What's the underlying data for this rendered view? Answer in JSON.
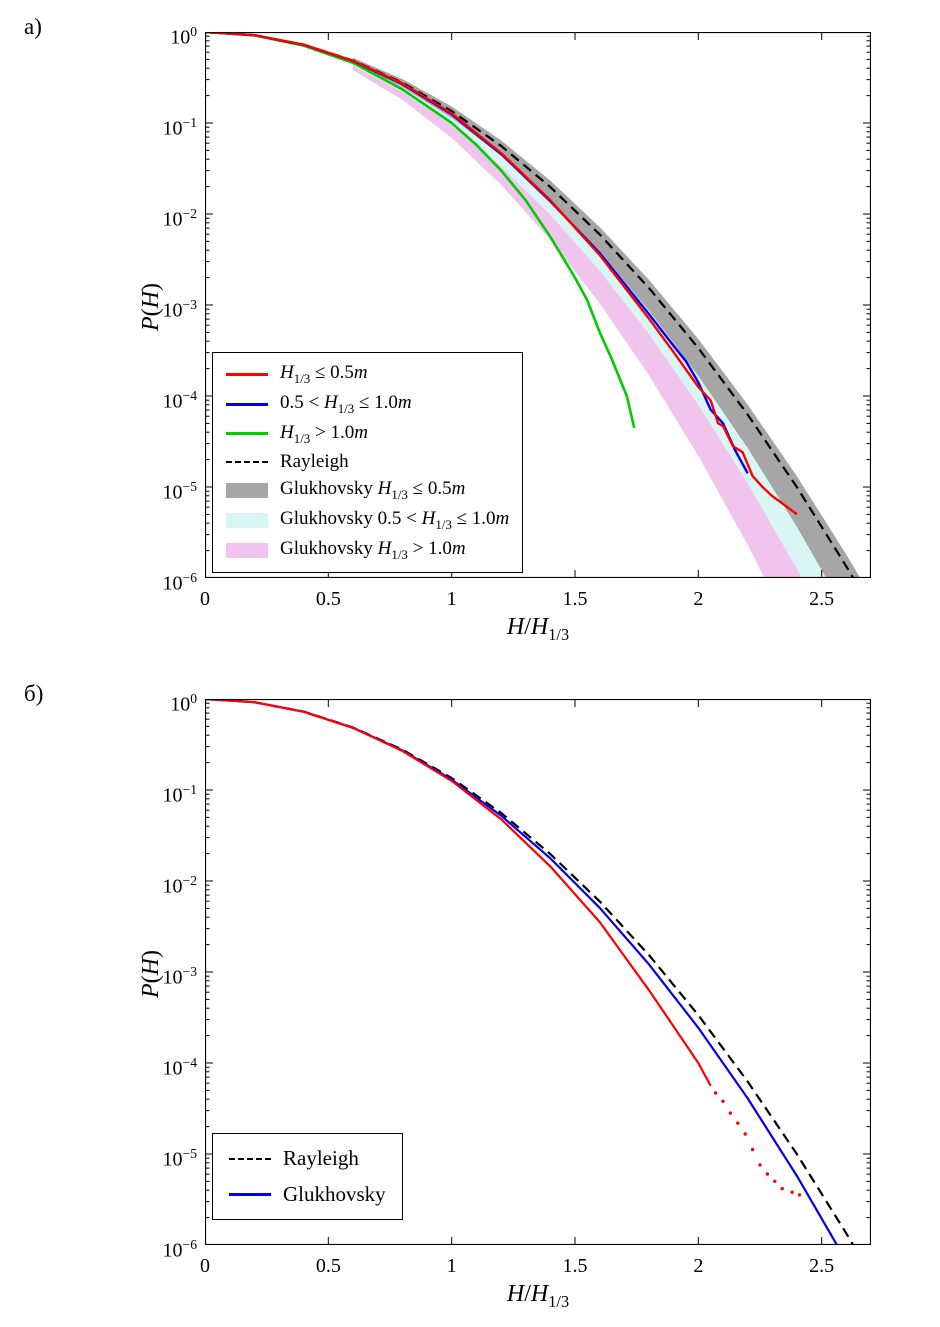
{
  "figure": {
    "description_note": "",
    "accent_colors": {
      "red": "#ff0000",
      "blue": "#0000ee",
      "green": "#00cc00",
      "black": "#000000",
      "gray_band": "#a6a6a6",
      "cyan_band": "#d9f6f4",
      "pink_band": "#f0c4ec"
    }
  },
  "chart_data": [
    {
      "type": "line",
      "panel_label": "а)",
      "title": "",
      "xlabel_segments": [
        [
          "i",
          "H"
        ],
        [
          "n",
          "/"
        ],
        [
          "i",
          "H"
        ],
        [
          "sub",
          "1/3"
        ]
      ],
      "ylabel_segments": [
        [
          "i",
          "P"
        ],
        [
          "n",
          "("
        ],
        [
          "i",
          "H"
        ],
        [
          "n",
          ")"
        ]
      ],
      "xlim": [
        0,
        2.7
      ],
      "ylog_exponent_range": [
        0,
        -6
      ],
      "x_ticks": [
        0,
        0.5,
        1,
        1.5,
        2,
        2.5
      ],
      "x_tick_labels": [
        "0",
        "0.5",
        "1",
        "1.5",
        "2",
        "2.5"
      ],
      "y_tick_exponents": [
        0,
        -1,
        -2,
        -3,
        -4,
        -5,
        -6
      ],
      "grid": false,
      "legend_position": "southwest",
      "bands": [
        {
          "name": "glukhovsky-band-le05",
          "color": "#a6a6a6",
          "x": [
            0.6,
            0.8,
            1.0,
            1.2,
            1.4,
            1.6,
            1.8,
            2.0,
            2.2,
            2.4,
            2.6,
            2.7
          ],
          "upper": [
            -0.283,
            -0.516,
            -0.819,
            -1.191,
            -1.633,
            -2.144,
            -2.724,
            -3.374,
            -4.094,
            -4.883,
            -5.742,
            -6.197
          ],
          "lower": [
            -0.34,
            -0.605,
            -0.945,
            -1.361,
            -1.852,
            -2.419,
            -3.062,
            -3.78,
            -4.574,
            -5.443,
            -6.388,
            -6.889
          ]
        },
        {
          "name": "glukhovsky-band-05to10",
          "color": "#d9f6f4",
          "x": [
            0.6,
            0.8,
            1.0,
            1.2,
            1.4,
            1.6,
            1.8,
            2.0,
            2.2,
            2.4,
            2.6,
            2.7
          ],
          "upper": [
            -0.34,
            -0.605,
            -0.945,
            -1.361,
            -1.852,
            -2.419,
            -3.062,
            -3.78,
            -4.574,
            -5.443,
            -6.388,
            -6.889
          ],
          "lower": [
            -0.369,
            -0.656,
            -1.025,
            -1.475,
            -2.008,
            -2.623,
            -3.319,
            -4.098,
            -4.959,
            -5.901,
            -6.926,
            -7.469
          ]
        },
        {
          "name": "glukhovsky-band-gt10",
          "color": "#f0c4ec",
          "x": [
            0.6,
            0.8,
            1.0,
            1.2,
            1.4,
            1.6,
            1.8,
            2.0,
            2.2,
            2.4,
            2.6,
            2.7
          ],
          "upper": [
            -0.369,
            -0.656,
            -1.025,
            -1.475,
            -2.008,
            -2.623,
            -3.319,
            -4.098,
            -4.959,
            -5.901,
            -6.926,
            -7.469
          ],
          "lower": [
            -0.419,
            -0.745,
            -1.164,
            -1.677,
            -2.282,
            -2.981,
            -3.773,
            -4.658,
            -5.636,
            -6.707,
            -7.871,
            -8.488
          ]
        }
      ],
      "series": [
        {
          "name": "rayleigh",
          "type": "line",
          "color": "#000000",
          "width": 2.2,
          "dash": "10 6",
          "x": [
            0,
            0.2,
            0.4,
            0.6,
            0.8,
            1.0,
            1.2,
            1.4,
            1.6,
            1.8,
            2.0,
            2.2,
            2.4,
            2.6,
            2.7
          ],
          "log10p": [
            0,
            -0.035,
            -0.139,
            -0.313,
            -0.556,
            -0.869,
            -1.251,
            -1.703,
            -2.224,
            -2.814,
            -3.474,
            -4.204,
            -5.003,
            -5.872,
            -6.332
          ]
        },
        {
          "name": "h13-gt-1.0m",
          "type": "line",
          "color": "#00cc00",
          "width": 2.6,
          "dash": null,
          "x": [
            0,
            0.2,
            0.4,
            0.6,
            0.8,
            1.0,
            1.1,
            1.2,
            1.3,
            1.4,
            1.5,
            1.55,
            1.6,
            1.65,
            1.68,
            1.71,
            1.74
          ],
          "log10p": [
            0,
            -0.036,
            -0.15,
            -0.34,
            -0.63,
            -1.0,
            -1.24,
            -1.52,
            -1.85,
            -2.25,
            -2.7,
            -2.95,
            -3.3,
            -3.6,
            -3.8,
            -4.0,
            -4.35
          ]
        },
        {
          "name": "h13-05-to-1.0m",
          "type": "line",
          "color": "#0000ee",
          "width": 2.4,
          "dash": null,
          "x": [
            0,
            0.2,
            0.4,
            0.6,
            0.8,
            1.0,
            1.2,
            1.4,
            1.6,
            1.8,
            1.9,
            1.95,
            2.0,
            2.05,
            2.1,
            2.15,
            2.2
          ],
          "log10p": [
            0,
            -0.035,
            -0.142,
            -0.32,
            -0.572,
            -0.905,
            -1.34,
            -1.86,
            -2.43,
            -3.1,
            -3.45,
            -3.62,
            -3.85,
            -4.15,
            -4.3,
            -4.6,
            -4.85
          ]
        },
        {
          "name": "h13-le-0.5m",
          "type": "line",
          "color": "#ff0000",
          "width": 2.4,
          "dash": null,
          "x": [
            0,
            0.2,
            0.4,
            0.6,
            0.8,
            1.0,
            1.2,
            1.4,
            1.6,
            1.8,
            1.9,
            2.0,
            2.05,
            2.08,
            2.1,
            2.14,
            2.18,
            2.22,
            2.26,
            2.3,
            2.35,
            2.4
          ],
          "log10p": [
            0,
            -0.035,
            -0.14,
            -0.317,
            -0.565,
            -0.895,
            -1.33,
            -1.85,
            -2.45,
            -3.15,
            -3.52,
            -3.9,
            -4.05,
            -4.3,
            -4.33,
            -4.55,
            -4.62,
            -4.88,
            -5.0,
            -5.1,
            -5.2,
            -5.3
          ]
        }
      ],
      "legend": [
        {
          "swatch": "line",
          "color": "#ff0000",
          "segments": [
            [
              "i",
              "H"
            ],
            [
              "sub",
              "1/3"
            ],
            [
              "n",
              " ≤ 0.5"
            ],
            [
              "i",
              "m"
            ]
          ]
        },
        {
          "swatch": "line",
          "color": "#0000ee",
          "segments": [
            [
              "n",
              "0.5 < "
            ],
            [
              "i",
              "H"
            ],
            [
              "sub",
              "1/3"
            ],
            [
              "n",
              " ≤ 1.0"
            ],
            [
              "i",
              "m"
            ]
          ]
        },
        {
          "swatch": "line",
          "color": "#00cc00",
          "segments": [
            [
              "i",
              "H"
            ],
            [
              "sub",
              "1/3"
            ],
            [
              "n",
              " > 1.0"
            ],
            [
              "i",
              "m"
            ]
          ]
        },
        {
          "swatch": "dash",
          "color": "#000000",
          "segments": [
            [
              "n",
              "Rayleigh"
            ]
          ]
        },
        {
          "swatch": "patch",
          "color": "#a6a6a6",
          "segments": [
            [
              "n",
              "Glukhovsky "
            ],
            [
              "i",
              "H"
            ],
            [
              "sub",
              "1/3"
            ],
            [
              "n",
              " ≤ 0.5"
            ],
            [
              "i",
              "m"
            ]
          ]
        },
        {
          "swatch": "patch",
          "color": "#d9f6f4",
          "segments": [
            [
              "n",
              "Glukhovsky 0.5 < "
            ],
            [
              "i",
              "H"
            ],
            [
              "sub",
              "1/3"
            ],
            [
              "n",
              " ≤ 1.0"
            ],
            [
              "i",
              "m"
            ]
          ]
        },
        {
          "swatch": "patch",
          "color": "#f0c4ec",
          "segments": [
            [
              "n",
              "Glukhovsky "
            ],
            [
              "i",
              "H"
            ],
            [
              "sub",
              "1/3"
            ],
            [
              "n",
              " > 1.0"
            ],
            [
              "i",
              "m"
            ]
          ]
        }
      ]
    },
    {
      "type": "line",
      "panel_label": "б)",
      "title": "",
      "xlabel_segments": [
        [
          "i",
          "H"
        ],
        [
          "n",
          "/"
        ],
        [
          "i",
          "H"
        ],
        [
          "sub",
          "1/3"
        ]
      ],
      "ylabel_segments": [
        [
          "i",
          "P"
        ],
        [
          "n",
          "("
        ],
        [
          "i",
          "H"
        ],
        [
          "n",
          ")"
        ]
      ],
      "xlim": [
        0,
        2.7
      ],
      "ylog_exponent_range": [
        0,
        -6
      ],
      "x_ticks": [
        0,
        0.5,
        1,
        1.5,
        2,
        2.5
      ],
      "x_tick_labels": [
        "0",
        "0.5",
        "1",
        "1.5",
        "2",
        "2.5"
      ],
      "y_tick_exponents": [
        0,
        -1,
        -2,
        -3,
        -4,
        -5,
        -6
      ],
      "grid": false,
      "legend_position": "southwest",
      "bands": [],
      "series": [
        {
          "name": "rayleigh",
          "type": "line",
          "color": "#000000",
          "width": 2.2,
          "dash": "10 6",
          "x": [
            0,
            0.2,
            0.4,
            0.6,
            0.8,
            1.0,
            1.2,
            1.4,
            1.6,
            1.8,
            2.0,
            2.2,
            2.4,
            2.6,
            2.7
          ],
          "log10p": [
            0,
            -0.035,
            -0.139,
            -0.313,
            -0.556,
            -0.869,
            -1.251,
            -1.703,
            -2.224,
            -2.814,
            -3.474,
            -4.204,
            -5.003,
            -5.872,
            -6.332
          ]
        },
        {
          "name": "glukhovsky",
          "type": "line",
          "color": "#0000ee",
          "width": 2.2,
          "dash": null,
          "x": [
            0,
            0.2,
            0.4,
            0.6,
            0.8,
            1.0,
            1.2,
            1.4,
            1.6,
            1.8,
            2.0,
            2.2,
            2.4,
            2.6
          ],
          "log10p": [
            0,
            -0.035,
            -0.14,
            -0.316,
            -0.565,
            -0.886,
            -1.281,
            -1.75,
            -2.295,
            -2.916,
            -3.613,
            -4.389,
            -5.243,
            -6.177
          ]
        },
        {
          "name": "measured-wave-data",
          "type": "line",
          "color": "#ff0000",
          "width": 2.2,
          "dash": null,
          "x": [
            0,
            0.2,
            0.4,
            0.6,
            0.8,
            1.0,
            1.2,
            1.4,
            1.6,
            1.8,
            1.9,
            2.0,
            2.05
          ],
          "log10p": [
            0,
            -0.035,
            -0.141,
            -0.318,
            -0.57,
            -0.9,
            -1.32,
            -1.84,
            -2.45,
            -3.2,
            -3.6,
            -4.0,
            -4.25
          ]
        },
        {
          "name": "measured-wave-data-tail",
          "type": "dots",
          "color": "#ff0000",
          "width": 1.7,
          "dash": null,
          "x": [
            2.07,
            2.1,
            2.13,
            2.16,
            2.19,
            2.22,
            2.25,
            2.28,
            2.31,
            2.34,
            2.38,
            2.41
          ],
          "log10p": [
            -4.33,
            -4.42,
            -4.55,
            -4.66,
            -4.78,
            -4.95,
            -5.12,
            -5.22,
            -5.3,
            -5.38,
            -5.42,
            -5.45
          ]
        }
      ],
      "legend": [
        {
          "swatch": "dash",
          "color": "#000000",
          "segments": [
            [
              "n",
              "Rayleigh"
            ]
          ]
        },
        {
          "swatch": "line",
          "color": "#0000ee",
          "segments": [
            [
              "n",
              "Glukhovsky"
            ]
          ]
        }
      ]
    }
  ]
}
